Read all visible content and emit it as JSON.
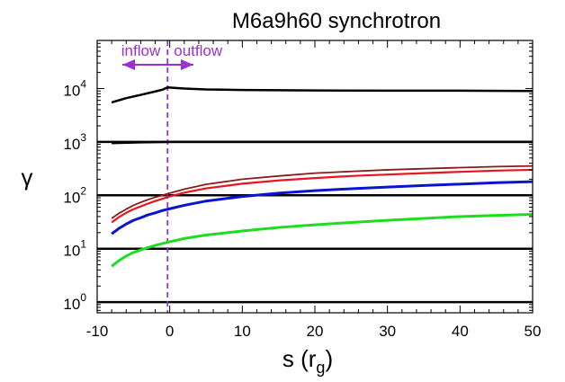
{
  "chart_data": {
    "type": "line",
    "title": "M6a9h60   synchrotron",
    "xlabel": "s (r",
    "xlabel_sub": "g",
    "xlabel_close": ")",
    "ylabel": "γ",
    "xlim": [
      -10,
      50
    ],
    "ylim_log10": [
      -0.2,
      4.9
    ],
    "yscale": "log",
    "x_ticks": [
      -10,
      0,
      10,
      20,
      30,
      40,
      50
    ],
    "x_tick_labels": [
      "-10",
      "0",
      "10",
      "20",
      "30",
      "40",
      "50"
    ],
    "y_ticks": [
      {
        "base": "10",
        "exp": "0",
        "value": 1
      },
      {
        "base": "10",
        "exp": "1",
        "value": 10
      },
      {
        "base": "10",
        "exp": "2",
        "value": 100
      },
      {
        "base": "10",
        "exp": "3",
        "value": 1000
      },
      {
        "base": "10",
        "exp": "4",
        "value": 10000
      }
    ],
    "grid": false,
    "reference_lines": {
      "horizontal": [
        1,
        10,
        100,
        1000
      ],
      "vertical_dashed_x": -0.3,
      "vertical_color": "#9b30d0"
    },
    "annotations": {
      "inflow_label": "inflow",
      "outflow_label": "outflow",
      "color": "#9b30d0"
    },
    "series": [
      {
        "color": "#000000",
        "width": 2.5,
        "x": [
          -8,
          -6,
          -4,
          -2,
          -1,
          -0.3,
          2,
          5,
          10,
          20,
          30,
          40,
          50
        ],
        "y": [
          5500,
          6600,
          7600,
          8800,
          9500,
          10500,
          10000,
          9600,
          9400,
          9200,
          9100,
          9100,
          9000
        ]
      },
      {
        "color": "#000000",
        "width": 2.5,
        "x": [
          -8,
          -4,
          0,
          10,
          20,
          30,
          40,
          50
        ],
        "y": [
          950,
          980,
          1000,
          1000,
          1000,
          1000,
          1000,
          1000
        ]
      },
      {
        "color": "#8b1a1a",
        "width": 1.8,
        "x": [
          -8,
          -7,
          -6,
          -5,
          -4,
          -3,
          -2,
          -1,
          0,
          2,
          5,
          10,
          15,
          20,
          25,
          30,
          35,
          40,
          45,
          50
        ],
        "y": [
          37,
          46,
          55,
          65,
          74,
          83,
          92,
          100,
          110,
          130,
          160,
          200,
          230,
          260,
          280,
          300,
          315,
          330,
          345,
          355
        ]
      },
      {
        "color": "#e8141e",
        "width": 2.2,
        "x": [
          -8,
          -7,
          -6,
          -5,
          -4,
          -3,
          -2,
          -1,
          0,
          2,
          5,
          10,
          15,
          20,
          25,
          30,
          35,
          40,
          45,
          50
        ],
        "y": [
          31,
          39,
          47,
          55,
          62,
          70,
          78,
          86,
          95,
          112,
          135,
          165,
          190,
          210,
          230,
          245,
          260,
          275,
          290,
          300
        ]
      },
      {
        "color": "#0a14d0",
        "width": 3,
        "x": [
          -8,
          -7,
          -6,
          -5,
          -4,
          -3,
          -2,
          -1,
          0,
          2,
          5,
          10,
          15,
          20,
          25,
          30,
          35,
          40,
          45,
          50
        ],
        "y": [
          19,
          24,
          29,
          34,
          38,
          43,
          47,
          52,
          56,
          65,
          78,
          95,
          110,
          122,
          133,
          143,
          153,
          162,
          172,
          180
        ]
      },
      {
        "color": "#1edc1e",
        "width": 3,
        "x": [
          -8,
          -7,
          -6,
          -5,
          -4,
          -3,
          -2,
          -1,
          0,
          2,
          5,
          10,
          15,
          20,
          25,
          30,
          35,
          40,
          45,
          50
        ],
        "y": [
          4.7,
          6.0,
          7.3,
          8.5,
          9.5,
          10.5,
          11.5,
          12.5,
          13.5,
          15.5,
          18,
          21.5,
          25,
          28,
          31,
          34,
          37,
          40,
          42,
          44
        ]
      }
    ]
  }
}
